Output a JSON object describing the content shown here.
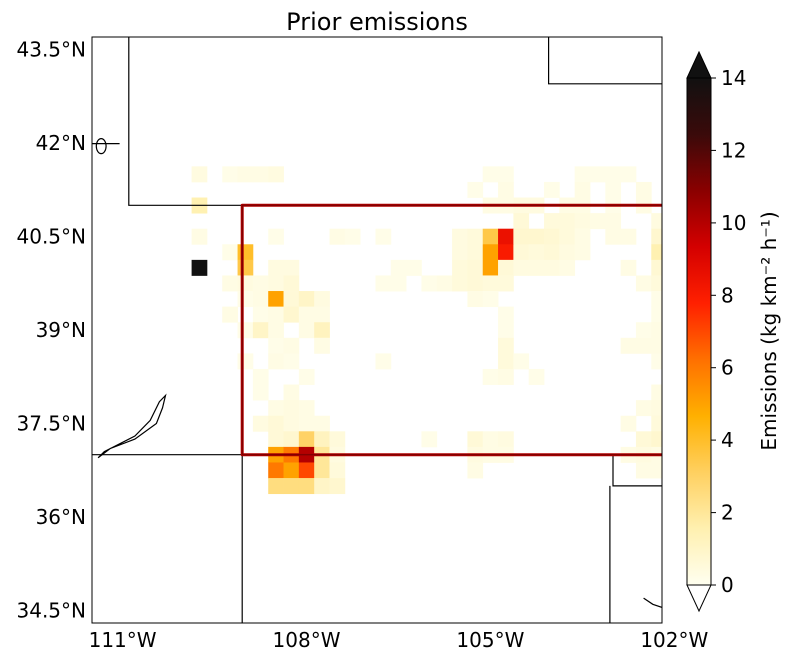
{
  "title": "Prior emissions",
  "lat_ticks": [
    "43.5°N",
    "42°N",
    "40.5°N",
    "39°N",
    "37.5°N",
    "36°N",
    "34.5°N"
  ],
  "lon_ticks": [
    "111°W",
    "108°W",
    "105°W",
    "102°W"
  ],
  "colorbar": {
    "label": "Emissions (kg km⁻² h⁻¹)",
    "ticks": [
      "0",
      "2",
      "4",
      "6",
      "8",
      "10",
      "12",
      "14"
    ],
    "min": 0,
    "max": 14,
    "extend": "both",
    "colormap": [
      "#fffff0",
      "#fff0b0",
      "#ffd060",
      "#ffb000",
      "#ff7000",
      "#ff2000",
      "#d40000",
      "#8a0000",
      "#3a0a0a",
      "#111111"
    ]
  },
  "colors": {
    "border": "#000000",
    "region_outline": "#b00000"
  },
  "map_extent": {
    "lon": [
      -111.5,
      -102.2
    ],
    "lat": [
      34.3,
      43.7
    ]
  },
  "grid_step_deg": 0.25,
  "emissions": [
    [
      41.5,
      -109.75,
      0.4
    ],
    [
      41.5,
      -109.25,
      0.2
    ],
    [
      41.5,
      -109.0,
      0.3
    ],
    [
      41.5,
      -108.75,
      0.3
    ],
    [
      41.5,
      -108.5,
      0.4
    ],
    [
      41.5,
      -105.0,
      0.2
    ],
    [
      41.5,
      -104.75,
      0.2
    ],
    [
      41.5,
      -103.5,
      0.2
    ],
    [
      41.5,
      -103.25,
      0.2
    ],
    [
      41.5,
      -103.0,
      0.2
    ],
    [
      41.5,
      -102.75,
      0.2
    ],
    [
      41.5,
      -102.0,
      0.3
    ],
    [
      41.25,
      -105.25,
      0.2
    ],
    [
      41.25,
      -104.75,
      0.3
    ],
    [
      41.25,
      -104.0,
      0.2
    ],
    [
      41.25,
      -103.5,
      0.3
    ],
    [
      41.25,
      -103.0,
      0.2
    ],
    [
      41.25,
      -102.5,
      0.3
    ],
    [
      41.25,
      -102.0,
      0.6
    ],
    [
      41.25,
      -101.75,
      2.0
    ],
    [
      41.0,
      -109.75,
      1.5
    ],
    [
      41.0,
      -105.0,
      0.3
    ],
    [
      41.0,
      -104.75,
      0.3
    ],
    [
      41.0,
      -104.5,
      0.4
    ],
    [
      41.0,
      -104.25,
      0.4
    ],
    [
      41.0,
      -103.75,
      0.3
    ],
    [
      41.0,
      -103.5,
      0.3
    ],
    [
      41.0,
      -103.0,
      0.2
    ],
    [
      41.0,
      -102.5,
      0.3
    ],
    [
      41.0,
      -102.0,
      0.8
    ],
    [
      41.0,
      -101.75,
      0.5
    ],
    [
      40.75,
      -104.5,
      0.6
    ],
    [
      40.75,
      -104.0,
      0.5
    ],
    [
      40.75,
      -103.75,
      0.5
    ],
    [
      40.75,
      -103.5,
      0.4
    ],
    [
      40.75,
      -103.25,
      0.3
    ],
    [
      40.75,
      -103.0,
      0.3
    ],
    [
      40.75,
      -102.25,
      0.4
    ],
    [
      40.75,
      -101.75,
      0.5
    ],
    [
      40.5,
      -109.75,
      0.3
    ],
    [
      40.5,
      -108.5,
      0.2
    ],
    [
      40.5,
      -107.5,
      0.3
    ],
    [
      40.5,
      -107.25,
      0.2
    ],
    [
      40.5,
      -106.75,
      0.2
    ],
    [
      40.5,
      -105.5,
      0.4
    ],
    [
      40.5,
      -105.25,
      0.5
    ],
    [
      40.5,
      -105.0,
      3.5
    ],
    [
      40.5,
      -104.75,
      8.5
    ],
    [
      40.5,
      -104.5,
      0.8
    ],
    [
      40.5,
      -104.25,
      0.8
    ],
    [
      40.5,
      -104.0,
      0.7
    ],
    [
      40.5,
      -103.75,
      0.5
    ],
    [
      40.5,
      -103.5,
      0.3
    ],
    [
      40.5,
      -103.0,
      0.3
    ],
    [
      40.5,
      -102.75,
      0.3
    ],
    [
      40.5,
      -102.25,
      0.8
    ],
    [
      40.5,
      -102.0,
      0.3
    ],
    [
      40.25,
      -109.25,
      0.2
    ],
    [
      40.25,
      -109.0,
      4.0
    ],
    [
      40.25,
      -105.5,
      0.4
    ],
    [
      40.25,
      -105.25,
      0.5
    ],
    [
      40.25,
      -105.0,
      5.0
    ],
    [
      40.25,
      -104.75,
      8.0
    ],
    [
      40.25,
      -104.5,
      0.6
    ],
    [
      40.25,
      -104.25,
      0.5
    ],
    [
      40.25,
      -104.0,
      0.6
    ],
    [
      40.25,
      -103.75,
      0.4
    ],
    [
      40.25,
      -103.5,
      0.3
    ],
    [
      40.25,
      -102.25,
      1.5
    ],
    [
      40.25,
      -102.0,
      0.4
    ],
    [
      40.0,
      -109.75,
      14.0
    ],
    [
      40.0,
      -109.0,
      3.5
    ],
    [
      40.0,
      -108.5,
      0.4
    ],
    [
      40.0,
      -108.25,
      0.4
    ],
    [
      40.0,
      -106.5,
      0.2
    ],
    [
      40.0,
      -106.25,
      0.2
    ],
    [
      40.0,
      -105.5,
      0.5
    ],
    [
      40.0,
      -105.25,
      0.6
    ],
    [
      40.0,
      -105.0,
      5.0
    ],
    [
      40.0,
      -104.75,
      0.6
    ],
    [
      40.0,
      -104.5,
      0.4
    ],
    [
      40.0,
      -104.25,
      0.4
    ],
    [
      40.0,
      -104.0,
      0.4
    ],
    [
      40.0,
      -103.75,
      0.3
    ],
    [
      40.0,
      -102.75,
      0.3
    ],
    [
      40.0,
      -102.25,
      0.7
    ],
    [
      40.0,
      -102.0,
      0.3
    ],
    [
      39.75,
      -109.25,
      0.3
    ],
    [
      39.75,
      -109.0,
      0.4
    ],
    [
      39.75,
      -108.75,
      0.3
    ],
    [
      39.75,
      -108.5,
      0.4
    ],
    [
      39.75,
      -108.25,
      0.6
    ],
    [
      39.75,
      -106.75,
      0.2
    ],
    [
      39.75,
      -106.5,
      0.2
    ],
    [
      39.75,
      -106.0,
      0.2
    ],
    [
      39.75,
      -105.75,
      0.3
    ],
    [
      39.75,
      -105.5,
      0.5
    ],
    [
      39.75,
      -105.25,
      0.6
    ],
    [
      39.75,
      -105.0,
      0.5
    ],
    [
      39.75,
      -104.75,
      0.5
    ],
    [
      39.75,
      -102.5,
      0.3
    ],
    [
      39.75,
      -102.25,
      0.5
    ],
    [
      39.75,
      -102.0,
      0.4
    ],
    [
      39.5,
      -109.0,
      0.2
    ],
    [
      39.5,
      -108.75,
      0.3
    ],
    [
      39.5,
      -108.5,
      5.0
    ],
    [
      39.5,
      -108.25,
      0.6
    ],
    [
      39.5,
      -108.0,
      1.0
    ],
    [
      39.5,
      -107.75,
      0.4
    ],
    [
      39.5,
      -105.25,
      0.3
    ],
    [
      39.5,
      -105.0,
      0.2
    ],
    [
      39.5,
      -102.25,
      0.2
    ],
    [
      39.5,
      -102.0,
      0.3
    ],
    [
      39.25,
      -109.25,
      0.3
    ],
    [
      39.25,
      -108.75,
      0.2
    ],
    [
      39.25,
      -108.5,
      0.3
    ],
    [
      39.25,
      -108.25,
      0.8
    ],
    [
      39.25,
      -108.0,
      0.3
    ],
    [
      39.25,
      -107.75,
      0.3
    ],
    [
      39.25,
      -104.75,
      0.2
    ],
    [
      39.25,
      -102.25,
      0.2
    ],
    [
      39.25,
      -102.0,
      0.2
    ],
    [
      39.0,
      -109.0,
      0.2
    ],
    [
      39.0,
      -108.75,
      1.0
    ],
    [
      39.0,
      -108.5,
      0.3
    ],
    [
      39.0,
      -108.0,
      0.3
    ],
    [
      39.0,
      -107.75,
      1.2
    ],
    [
      39.0,
      -104.75,
      0.2
    ],
    [
      39.0,
      -102.5,
      0.2
    ],
    [
      39.0,
      -102.25,
      0.3
    ],
    [
      39.0,
      -102.0,
      0.3
    ],
    [
      38.75,
      -108.5,
      0.2
    ],
    [
      38.75,
      -108.25,
      0.3
    ],
    [
      38.75,
      -107.75,
      0.3
    ],
    [
      38.75,
      -104.75,
      0.5
    ],
    [
      38.75,
      -102.75,
      0.3
    ],
    [
      38.75,
      -102.5,
      0.3
    ],
    [
      38.75,
      -102.25,
      0.3
    ],
    [
      38.5,
      -109.0,
      0.2
    ],
    [
      38.5,
      -108.5,
      0.3
    ],
    [
      38.5,
      -108.25,
      0.2
    ],
    [
      38.5,
      -106.75,
      0.2
    ],
    [
      38.5,
      -104.75,
      0.5
    ],
    [
      38.5,
      -104.5,
      0.2
    ],
    [
      38.5,
      -102.25,
      0.2
    ],
    [
      38.5,
      -102.0,
      0.3
    ],
    [
      38.25,
      -108.75,
      0.2
    ],
    [
      38.25,
      -108.0,
      0.2
    ],
    [
      38.25,
      -105.0,
      0.2
    ],
    [
      38.25,
      -104.75,
      0.3
    ],
    [
      38.25,
      -104.25,
      0.2
    ],
    [
      38.25,
      -102.0,
      0.6
    ],
    [
      38.25,
      -101.75,
      1.0
    ],
    [
      38.0,
      -108.75,
      0.2
    ],
    [
      38.0,
      -108.25,
      0.3
    ],
    [
      38.0,
      -102.25,
      0.3
    ],
    [
      38.0,
      -102.0,
      0.8
    ],
    [
      38.0,
      -101.75,
      1.0
    ],
    [
      37.75,
      -108.5,
      0.3
    ],
    [
      37.75,
      -108.25,
      0.4
    ],
    [
      37.75,
      -108.0,
      0.3
    ],
    [
      37.75,
      -102.5,
      0.3
    ],
    [
      37.75,
      -102.25,
      0.4
    ],
    [
      37.75,
      -102.0,
      0.6
    ],
    [
      37.75,
      -101.75,
      1.2
    ],
    [
      37.5,
      -108.75,
      0.4
    ],
    [
      37.5,
      -108.5,
      0.6
    ],
    [
      37.5,
      -108.25,
      0.4
    ],
    [
      37.5,
      -108.0,
      0.3
    ],
    [
      37.5,
      -107.75,
      0.3
    ],
    [
      37.5,
      -102.75,
      0.3
    ],
    [
      37.5,
      -102.25,
      0.5
    ],
    [
      37.5,
      -102.0,
      0.8
    ],
    [
      37.5,
      -101.75,
      1.0
    ],
    [
      37.25,
      -108.5,
      0.6
    ],
    [
      37.25,
      -108.25,
      0.8
    ],
    [
      37.25,
      -108.0,
      3.0
    ],
    [
      37.25,
      -107.75,
      1.2
    ],
    [
      37.25,
      -107.5,
      0.5
    ],
    [
      37.25,
      -106.0,
      0.2
    ],
    [
      37.25,
      -105.25,
      0.6
    ],
    [
      37.25,
      -105.0,
      0.3
    ],
    [
      37.25,
      -104.75,
      0.4
    ],
    [
      37.25,
      -102.5,
      0.6
    ],
    [
      37.25,
      -102.25,
      0.8
    ],
    [
      37.25,
      -102.0,
      0.6
    ],
    [
      37.25,
      -101.75,
      1.4
    ],
    [
      37.0,
      -108.5,
      5.0
    ],
    [
      37.0,
      -108.25,
      6.0
    ],
    [
      37.0,
      -108.0,
      10.0
    ],
    [
      37.0,
      -107.75,
      2.0
    ],
    [
      37.0,
      -107.5,
      0.4
    ],
    [
      37.0,
      -105.25,
      0.4
    ],
    [
      37.0,
      -105.0,
      0.3
    ],
    [
      37.0,
      -104.75,
      0.3
    ],
    [
      37.0,
      -102.75,
      0.3
    ],
    [
      37.0,
      -102.5,
      0.4
    ],
    [
      37.0,
      -102.25,
      0.3
    ],
    [
      37.0,
      -102.0,
      0.3
    ],
    [
      37.0,
      -101.75,
      0.4
    ],
    [
      36.75,
      -108.5,
      6.0
    ],
    [
      36.75,
      -108.25,
      5.0
    ],
    [
      36.75,
      -108.0,
      7.0
    ],
    [
      36.75,
      -107.75,
      2.0
    ],
    [
      36.75,
      -107.5,
      0.5
    ],
    [
      36.75,
      -105.25,
      0.3
    ],
    [
      36.75,
      -102.5,
      0.3
    ],
    [
      36.75,
      -102.25,
      0.3
    ],
    [
      36.75,
      -102.0,
      0.3
    ],
    [
      36.75,
      -101.75,
      5.0
    ],
    [
      36.5,
      -108.5,
      2.5
    ],
    [
      36.5,
      -108.25,
      2.5
    ],
    [
      36.5,
      -108.0,
      2.5
    ],
    [
      36.5,
      -107.75,
      1.0
    ],
    [
      36.5,
      -107.5,
      0.8
    ]
  ],
  "study_region": [
    [
      41.0,
      -109.05
    ],
    [
      41.0,
      -102.05
    ],
    [
      37.0,
      -102.05
    ],
    [
      37.0,
      -109.05
    ]
  ],
  "borders": [
    [
      [
        43.7,
        -110.9
      ],
      [
        41.0,
        -110.9
      ],
      [
        41.0,
        -102.05
      ]
    ],
    [
      [
        43.7,
        -104.05
      ],
      [
        42.95,
        -104.05
      ],
      [
        42.95,
        -102.2
      ]
    ],
    [
      [
        41.0,
        -102.05
      ],
      [
        40.0,
        -102.05
      ],
      [
        40.0,
        -102.2
      ]
    ],
    [
      [
        37.0,
        -111.5
      ],
      [
        37.0,
        -102.2
      ]
    ],
    [
      [
        37.0,
        -109.05
      ],
      [
        34.3,
        -109.05
      ]
    ],
    [
      [
        37.0,
        -103.0
      ],
      [
        36.5,
        -103.0
      ],
      [
        36.5,
        -102.2
      ]
    ],
    [
      [
        36.5,
        -103.05
      ],
      [
        34.3,
        -103.05
      ]
    ],
    [
      [
        41.99,
        -111.5
      ],
      [
        41.99,
        -111.05
      ]
    ],
    [
      [
        34.55,
        -102.2
      ],
      [
        34.6,
        -102.35
      ],
      [
        34.7,
        -102.5
      ]
    ]
  ],
  "lake": [
    [
      37.1,
      -111.2
    ],
    [
      37.25,
      -110.8
    ],
    [
      37.5,
      -110.45
    ],
    [
      37.75,
      -110.35
    ],
    [
      37.95,
      -110.3
    ],
    [
      37.85,
      -110.4
    ],
    [
      37.55,
      -110.55
    ],
    [
      37.3,
      -110.8
    ],
    [
      37.05,
      -111.3
    ],
    [
      36.95,
      -111.4
    ]
  ],
  "small_lake": [
    41.95,
    -111.35,
    0.08,
    0.12
  ]
}
